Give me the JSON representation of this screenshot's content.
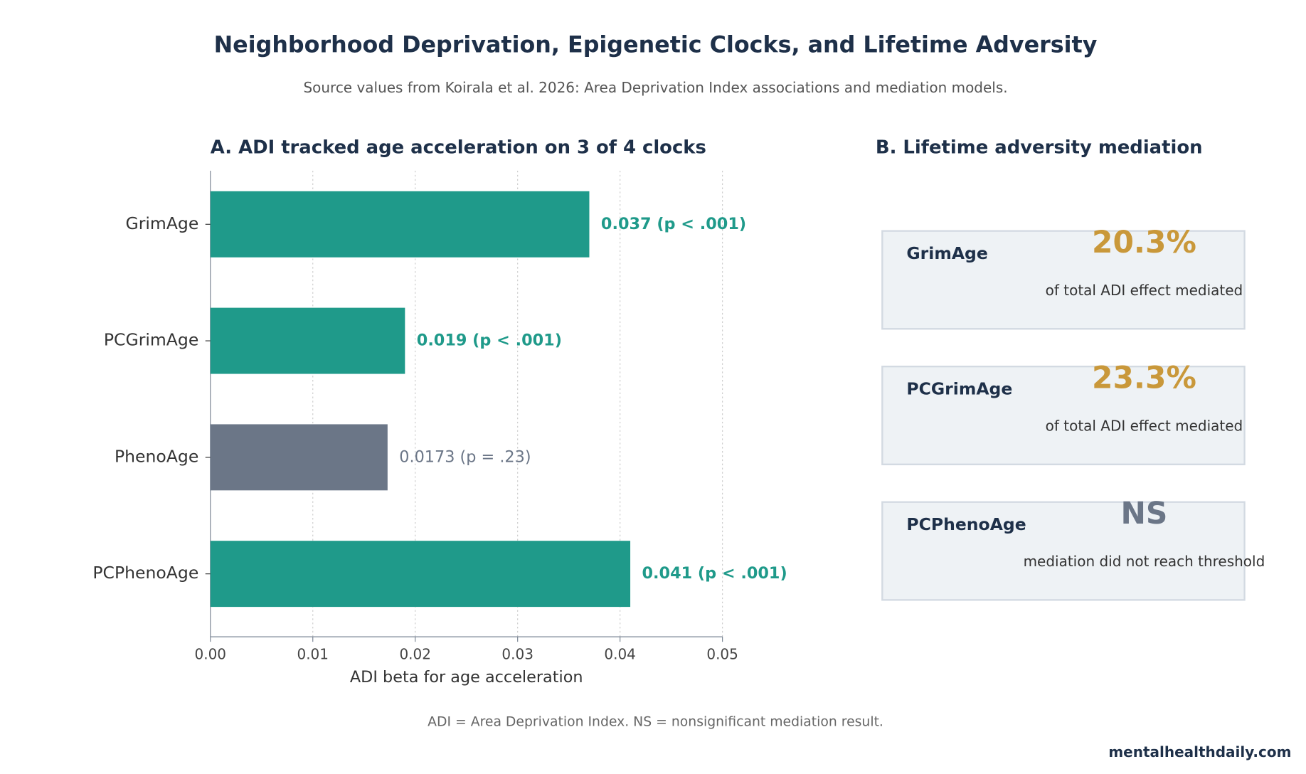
{
  "title": "Neighborhood Deprivation, Epigenetic Clocks, and Lifetime Adversity",
  "subtitle": "Source values from Koirala et al. 2026: Area Deprivation Index associations and mediation models.",
  "chart_data": {
    "type": "barh",
    "title": "A. ADI tracked age acceleration on 3 of 4 clocks",
    "categories": [
      "GrimAge",
      "PCGrimAge",
      "PhenoAge",
      "PCPhenoAge"
    ],
    "values": [
      0.037,
      0.019,
      0.0173,
      0.041
    ],
    "value_labels": [
      "0.037 (p < .001)",
      "0.019 (p < .001)",
      "0.0173 (p = .23)",
      "0.041 (p < .001)"
    ],
    "colors": [
      "#1f9a8a",
      "#1f9a8a",
      "#6b7687",
      "#1f9a8a"
    ],
    "label_weights": [
      "bold",
      "bold",
      "normal",
      "bold"
    ],
    "xlabel": "ADI beta for age acceleration",
    "xlim": [
      0,
      0.05
    ],
    "xticks": [
      {
        "value": 0,
        "label": "0.00"
      },
      {
        "value": 0.01,
        "label": "0.01"
      },
      {
        "value": 0.02,
        "label": "0.02"
      },
      {
        "value": 0.03,
        "label": "0.03"
      },
      {
        "value": 0.04,
        "label": "0.04"
      },
      {
        "value": 0.05,
        "label": "0.05"
      }
    ],
    "grid": true
  },
  "panel_b": {
    "title": "B. Lifetime adversity mediation",
    "cards": [
      {
        "name": "GrimAge",
        "value": "20.3%",
        "description": "of total ADI effect mediated",
        "color": "#c9983a"
      },
      {
        "name": "PCGrimAge",
        "value": "23.3%",
        "description": "of total ADI effect mediated",
        "color": "#c9983a"
      },
      {
        "name": "PCPhenoAge",
        "value": "NS",
        "description": "mediation did not reach threshold",
        "color": "#6b7687"
      }
    ]
  },
  "footnote": "ADI = Area Deprivation Index. NS = nonsignificant mediation result.",
  "source": "mentalhealthdaily.com"
}
